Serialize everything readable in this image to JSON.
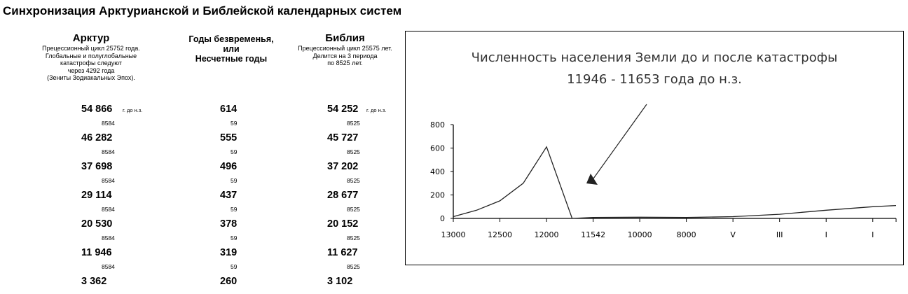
{
  "page_title": "Синхронизация Арктурианской и Библейской календарных систем",
  "columns": {
    "arcturus": {
      "name": "Арктур",
      "sub": "Прецессионный цикл 25752 года.\nГлобальные и полуглобальные\nкатастрофы следуют\nчерез 4292 года\n(Зениты Зодиакальных Эпох).",
      "unit": "г. до н.з."
    },
    "timeless": {
      "name": "Годы безвременья,\nили\nНесчетные годы"
    },
    "bible": {
      "name": "Библия",
      "sub": "Прецессионный цикл 25575 лет.\nДелится на 3 периода\nпо 8525 лет.",
      "unit": "г. до н.з."
    }
  },
  "rows": [
    {
      "arcturus": "54 866",
      "timeless": "614",
      "bible": "54 252",
      "arcturus_diff": "8584",
      "timeless_diff": "59",
      "bible_diff": "8525"
    },
    {
      "arcturus": "46 282",
      "timeless": "555",
      "bible": "45 727",
      "arcturus_diff": "8584",
      "timeless_diff": "59",
      "bible_diff": "8525"
    },
    {
      "arcturus": "37 698",
      "timeless": "496",
      "bible": "37 202",
      "arcturus_diff": "8584",
      "timeless_diff": "59",
      "bible_diff": "8525"
    },
    {
      "arcturus": "29 114",
      "timeless": "437",
      "bible": "28 677",
      "arcturus_diff": "8584",
      "timeless_diff": "59",
      "bible_diff": "8525"
    },
    {
      "arcturus": "20 530",
      "timeless": "378",
      "bible": "20 152",
      "arcturus_diff": "8584",
      "timeless_diff": "59",
      "bible_diff": "8525"
    },
    {
      "arcturus": "11 946",
      "timeless": "319",
      "bible": "11 627",
      "arcturus_diff": "8584",
      "timeless_diff": "59",
      "bible_diff": "8525"
    },
    {
      "arcturus": "3 362",
      "timeless": "260",
      "bible": "3 102"
    }
  ],
  "chart_data": {
    "type": "line",
    "title": "Численность населения Земли до и после  катастрофы",
    "subtitle": "11946 - 11653 года  до  н.з.",
    "categories": [
      "13000",
      "12500",
      "12000",
      "11542",
      "10000",
      "8000",
      "V",
      "III",
      "I",
      "I"
    ],
    "yticks": [
      "0",
      "200",
      "400",
      "600",
      "800"
    ],
    "ylim": [
      0,
      800
    ],
    "series": [
      {
        "x": [
          0,
          0.5,
          1.0,
          1.5,
          2.0,
          2.55,
          3.0,
          4.0,
          5.0,
          6.0,
          7.0,
          8.0,
          9.0,
          9.5
        ],
        "values": [
          15,
          70,
          150,
          300,
          610,
          0,
          8,
          10,
          8,
          15,
          35,
          70,
          100,
          110
        ]
      }
    ],
    "annotation": "arrow pointing to the post-catastrophe drop",
    "grid": false,
    "legend": "none"
  }
}
